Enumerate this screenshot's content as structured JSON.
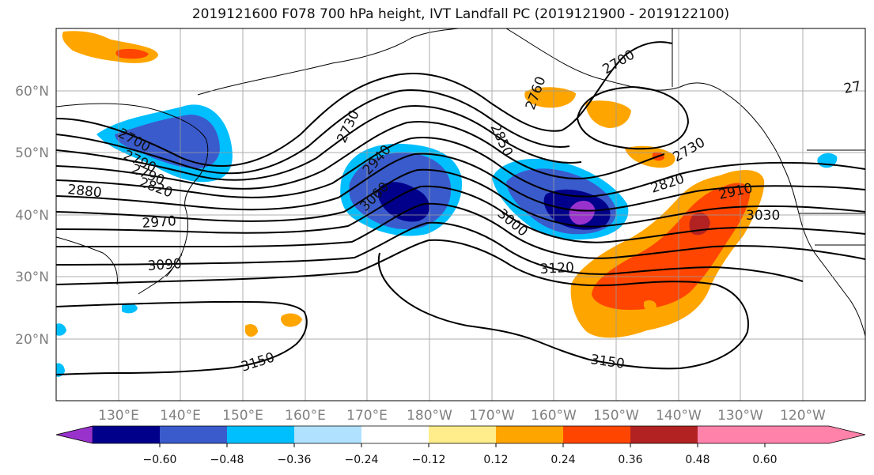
{
  "title": "2019121600 F078 700 hPa height, IVT Landfall PC (2019121900 - 2019122100)",
  "latitude_labels": [
    "60°N",
    "50°N",
    "40°N",
    "30°N",
    "20°N"
  ],
  "longitude_labels": [
    "130°E",
    "140°E",
    "150°E",
    "160°E",
    "170°E",
    "180°W",
    "170°W",
    "160°W",
    "150°W",
    "140°W",
    "130°W",
    "120°W"
  ],
  "contour_labels": [
    "2700",
    "2790",
    "2790",
    "2820",
    "2880",
    "2970",
    "3090",
    "2730",
    "2940",
    "3060",
    "2850",
    "2760",
    "3000",
    "3120",
    "3150",
    "3150",
    "2700",
    "2730",
    "2820",
    "2910",
    "3030",
    "27"
  ],
  "colorbar": {
    "tick_labels": [
      "−0.60",
      "−0.48",
      "−0.36",
      "−0.24",
      "−0.12",
      "0.12",
      "0.24",
      "0.36",
      "0.48",
      "0.60"
    ],
    "colors": [
      "#9932cc",
      "#00008b",
      "#3a5bcc",
      "#00bfff",
      "#b0e2ff",
      "#ffffff",
      "#ffec8b",
      "#ffa500",
      "#ff4500",
      "#b22222",
      "#ff82ab"
    ]
  }
}
